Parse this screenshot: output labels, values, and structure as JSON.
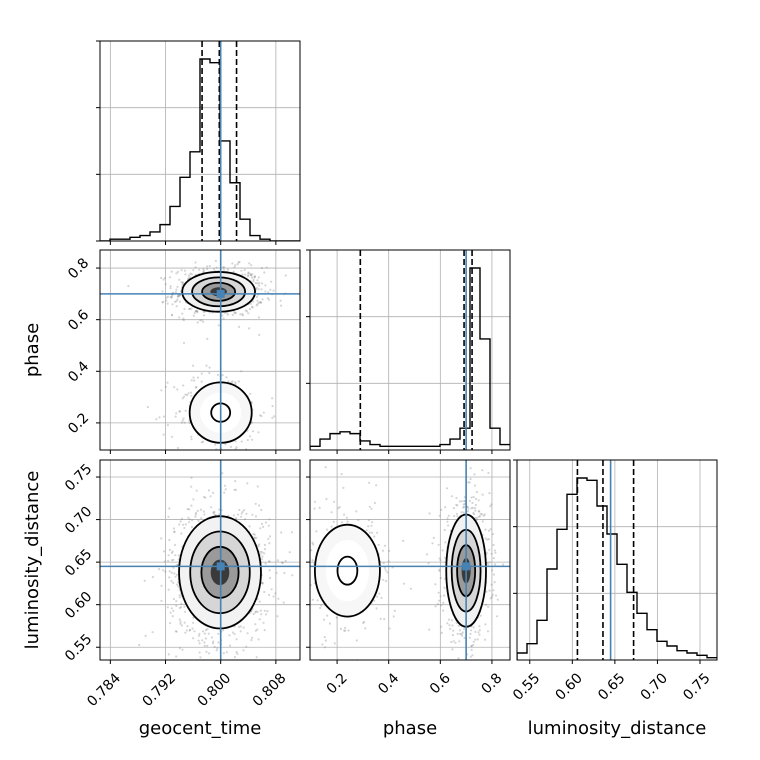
{
  "chart_data": {
    "type": "corner",
    "parameters": [
      "geocent_time",
      "phase",
      "luminosity_distance"
    ],
    "truths": {
      "geocent_time": 0.8,
      "phase": 0.7,
      "luminosity_distance": 0.645
    },
    "quantiles": {
      "geocent_time": [
        0.7973,
        0.7998,
        0.8023
      ],
      "phase": [
        0.29,
        0.692,
        0.723
      ],
      "luminosity_distance": [
        0.606,
        0.636,
        0.672
      ]
    },
    "axes": {
      "geocent_time": {
        "range": [
          0.7825,
          0.8115
        ],
        "ticks": [
          0.784,
          0.792,
          0.8,
          0.808
        ],
        "tick_labels": [
          "0.784",
          "0.792",
          "0.800",
          "0.808"
        ]
      },
      "phase": {
        "range": [
          0.095,
          0.87
        ],
        "ticks": [
          0.2,
          0.4,
          0.6,
          0.8
        ],
        "tick_labels": [
          "0.2",
          "0.4",
          "0.6",
          "0.8"
        ]
      },
      "luminosity_distance": {
        "range": [
          0.535,
          0.77
        ],
        "ticks": [
          0.55,
          0.6,
          0.65,
          0.7,
          0.75
        ],
        "tick_labels": [
          "0.55",
          "0.60",
          "0.65",
          "0.70",
          "0.75"
        ]
      }
    },
    "histograms": {
      "geocent_time": {
        "bin_edges_start": 0.7825,
        "bin_width": 0.00145,
        "counts": [
          0,
          1,
          1,
          2,
          3,
          5,
          9,
          19,
          35,
          49,
          100,
          98,
          55,
          32,
          12,
          3,
          1,
          0,
          0,
          0
        ]
      },
      "phase": {
        "bin_edges_start": 0.095,
        "bin_width": 0.03875,
        "counts": [
          2,
          6,
          9,
          10,
          9,
          5,
          3,
          2,
          2,
          2,
          2,
          2,
          2,
          3,
          6,
          12,
          100,
          61,
          12,
          3
        ]
      },
      "luminosity_distance": {
        "bin_edges_start": 0.535,
        "bin_width": 0.01175,
        "counts": [
          3,
          7,
          17,
          39,
          56,
          71,
          78,
          77,
          66,
          54,
          41,
          29,
          20,
          13,
          8,
          6,
          4,
          3,
          2,
          1
        ]
      }
    },
    "density_2d": {
      "geocent_time__phase": {
        "modes": [
          {
            "x": 0.7997,
            "y": 0.708,
            "sx": 0.0024,
            "sy": 0.035,
            "weight": 0.75
          },
          {
            "x": 0.8,
            "y": 0.24,
            "sx": 0.0025,
            "sy": 0.065,
            "weight": 0.25
          }
        ]
      },
      "geocent_time__luminosity_distance": {
        "modes": [
          {
            "x": 0.7999,
            "y": 0.638,
            "sx": 0.0027,
            "sy": 0.03,
            "weight": 1.0
          }
        ]
      },
      "phase__luminosity_distance": {
        "modes": [
          {
            "x": 0.7,
            "y": 0.64,
            "sx": 0.035,
            "sy": 0.03,
            "weight": 0.75
          },
          {
            "x": 0.24,
            "y": 0.64,
            "sx": 0.07,
            "sy": 0.03,
            "weight": 0.25
          }
        ]
      }
    },
    "grid": true,
    "colors": {
      "truth": "#4682b4",
      "hist": "#000000",
      "quantile": "#000000",
      "points": "#888888",
      "grid": "#b0b0b0"
    }
  }
}
